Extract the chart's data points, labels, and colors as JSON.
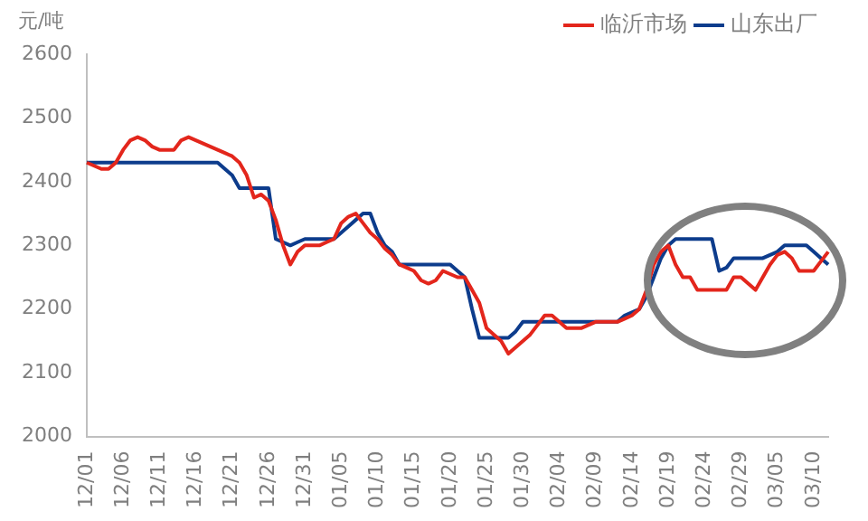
{
  "chart_data": {
    "type": "line",
    "ylabel": "元/吨",
    "categories": [
      "12/01",
      null,
      null,
      null,
      null,
      "12/06",
      null,
      null,
      null,
      null,
      "12/11",
      null,
      null,
      null,
      null,
      "12/16",
      null,
      null,
      null,
      null,
      "12/21",
      null,
      null,
      null,
      null,
      "12/26",
      null,
      null,
      null,
      null,
      "12/31",
      null,
      null,
      null,
      null,
      "01/05",
      null,
      null,
      null,
      null,
      "01/10",
      null,
      null,
      null,
      null,
      "01/15",
      null,
      null,
      null,
      null,
      "01/20",
      null,
      null,
      null,
      null,
      "01/25",
      null,
      null,
      null,
      null,
      "01/30",
      null,
      null,
      null,
      null,
      "02/04",
      null,
      null,
      null,
      null,
      "02/09",
      null,
      null,
      null,
      null,
      "02/14",
      null,
      null,
      null,
      null,
      "02/19",
      null,
      null,
      null,
      null,
      "02/24",
      null,
      null,
      null,
      null,
      "02/29",
      null,
      null,
      null,
      null,
      "03/05",
      null,
      null,
      null,
      null,
      "03/10",
      null,
      null
    ],
    "series": [
      {
        "name": "临沂市场",
        "color": "#e3261c",
        "values": [
          2430,
          2425,
          2420,
          2420,
          2430,
          2450,
          2465,
          2470,
          2465,
          2455,
          2450,
          2450,
          2450,
          2465,
          2470,
          2465,
          2460,
          2455,
          2450,
          2445,
          2440,
          2430,
          2410,
          2375,
          2380,
          2370,
          2340,
          2300,
          2270,
          2290,
          2300,
          2300,
          2300,
          2305,
          2310,
          2335,
          2345,
          2350,
          2335,
          2320,
          2310,
          2295,
          2285,
          2270,
          2265,
          2260,
          2245,
          2240,
          2245,
          2260,
          2255,
          2250,
          2250,
          2230,
          2210,
          2170,
          2160,
          2150,
          2130,
          2140,
          2150,
          2160,
          2175,
          2190,
          2190,
          2180,
          2170,
          2170,
          2170,
          2175,
          2180,
          2180,
          2180,
          2180,
          2185,
          2190,
          2200,
          2230,
          2270,
          2290,
          2300,
          2270,
          2250,
          2250,
          2230,
          2230,
          2230,
          2230,
          2230,
          2250,
          2250,
          2240,
          2230,
          2250,
          2270,
          2285,
          2290,
          2280,
          2260,
          2260,
          2260,
          2275,
          2290
        ]
      },
      {
        "name": "山东出厂",
        "color": "#0d3c8c",
        "values": [
          2430,
          2430,
          2430,
          2430,
          2430,
          2430,
          2430,
          2430,
          2430,
          2430,
          2430,
          2430,
          2430,
          2430,
          2430,
          2430,
          2430,
          2430,
          2430,
          2420,
          2410,
          2390,
          2390,
          2390,
          2390,
          2390,
          2310,
          2305,
          2300,
          2305,
          2310,
          2310,
          2310,
          2310,
          2310,
          2320,
          2330,
          2340,
          2350,
          2350,
          2320,
          2300,
          2290,
          2270,
          2270,
          2270,
          2270,
          2270,
          2270,
          2270,
          2270,
          2260,
          2250,
          2200,
          2155,
          2155,
          2155,
          2155,
          2155,
          2165,
          2180,
          2180,
          2180,
          2180,
          2180,
          2180,
          2180,
          2180,
          2180,
          2180,
          2180,
          2180,
          2180,
          2180,
          2190,
          2195,
          2200,
          2220,
          2250,
          2280,
          2300,
          2310,
          2310,
          2310,
          2310,
          2310,
          2310,
          2260,
          2265,
          2280,
          2280,
          2280,
          2280,
          2280,
          2285,
          2290,
          2300,
          2300,
          2300,
          2300,
          2290,
          2280,
          2270
        ]
      }
    ],
    "ylim": [
      2000,
      2600
    ],
    "yticks": [
      2000,
      2100,
      2200,
      2300,
      2400,
      2500,
      2600
    ],
    "grid": false,
    "legend": "top right",
    "marker": "none",
    "line_style": "solid"
  }
}
